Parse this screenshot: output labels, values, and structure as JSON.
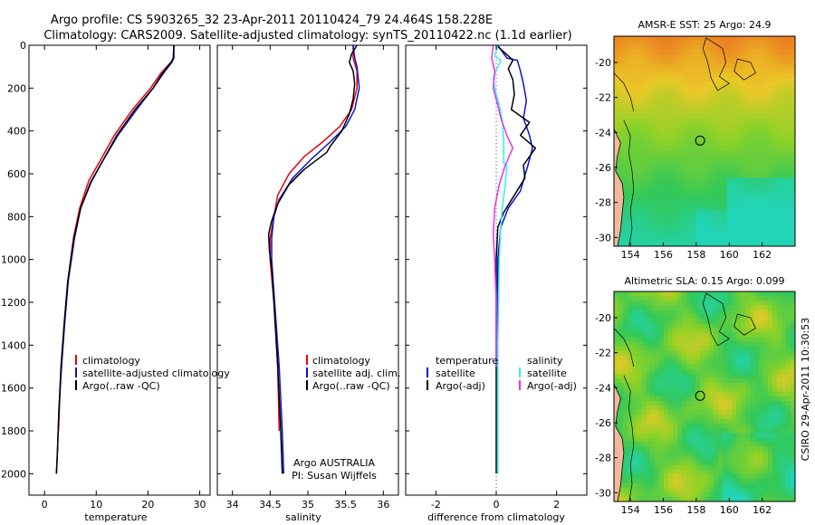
{
  "figure": {
    "title_line1": "Argo profile: CS 5903265_32 23-Apr-2011 20110424_79 24.464S 158.228E",
    "title_line2": "Climatology: CARS2009. Satellite-adjusted climatology: synTS_20110422.nc (1.1d earlier)",
    "side_label": "CSIRO 29-Apr-2011 10:30:53",
    "colors": {
      "red": "#e8000a",
      "blue": "#0a14d2",
      "black": "#000000",
      "cyan": "#33eeee",
      "magenta": "#e633e6"
    }
  },
  "chart_data": [
    {
      "type": "line",
      "xlabel": "temperature",
      "ylabel": "",
      "xlim": [
        -3,
        32
      ],
      "ylim": [
        2100,
        0
      ],
      "xticks": [
        0,
        10,
        20,
        30
      ],
      "yticks": [
        0,
        200,
        400,
        600,
        800,
        1000,
        1200,
        1400,
        1600,
        1800,
        2000
      ],
      "legend": [
        "climatology",
        "satellite-adjusted climatology",
        "Argo(..raw -QC)"
      ],
      "series": [
        {
          "color": "red",
          "points": [
            [
              25.0,
              0
            ],
            [
              24.9,
              60
            ],
            [
              24.4,
              80
            ],
            [
              22.5,
              130
            ],
            [
              20.5,
              200
            ],
            [
              17.0,
              300
            ],
            [
              13.5,
              420
            ],
            [
              10.5,
              550
            ],
            [
              8.6,
              630
            ],
            [
              6.8,
              760
            ],
            [
              5.6,
              900
            ],
            [
              4.5,
              1100
            ],
            [
              3.8,
              1300
            ],
            [
              3.2,
              1500
            ],
            [
              2.7,
              1800
            ]
          ]
        },
        {
          "color": "blue",
          "points": [
            [
              25.0,
              0
            ],
            [
              25.0,
              60
            ],
            [
              24.6,
              80
            ],
            [
              23.0,
              130
            ],
            [
              21.0,
              200
            ],
            [
              17.8,
              300
            ],
            [
              14.2,
              420
            ],
            [
              11.0,
              550
            ],
            [
              9.0,
              640
            ],
            [
              7.0,
              760
            ],
            [
              5.8,
              900
            ],
            [
              4.6,
              1100
            ],
            [
              3.9,
              1300
            ],
            [
              3.3,
              1500
            ],
            [
              2.8,
              1700
            ],
            [
              2.5,
              1900
            ],
            [
              2.3,
              2000
            ]
          ]
        },
        {
          "color": "black",
          "points": [
            [
              25.0,
              0
            ],
            [
              24.9,
              60
            ],
            [
              24.5,
              80
            ],
            [
              22.8,
              130
            ],
            [
              21.0,
              200
            ],
            [
              17.5,
              300
            ],
            [
              14.0,
              420
            ],
            [
              11.0,
              550
            ],
            [
              8.9,
              640
            ],
            [
              7.0,
              760
            ],
            [
              5.7,
              900
            ],
            [
              4.5,
              1100
            ],
            [
              3.8,
              1300
            ],
            [
              3.2,
              1500
            ],
            [
              2.8,
              1700
            ],
            [
              2.5,
              1900
            ],
            [
              2.3,
              2000
            ]
          ]
        }
      ]
    },
    {
      "type": "line",
      "xlabel": "salinity",
      "ylabel": "",
      "xlim": [
        33.8,
        36.2
      ],
      "ylim": [
        2100,
        0
      ],
      "xticks": [
        34,
        34.5,
        35,
        35.5,
        36
      ],
      "yticks": [],
      "legend": [
        "climatology",
        "satellite adj. clim.",
        "Argo(..raw -QC)"
      ],
      "notes": [
        "Argo AUSTRALIA",
        "PI: Susan Wijffels"
      ],
      "series": [
        {
          "color": "red",
          "points": [
            [
              35.6,
              0
            ],
            [
              35.6,
              60
            ],
            [
              35.65,
              120
            ],
            [
              35.65,
              200
            ],
            [
              35.58,
              300
            ],
            [
              35.42,
              380
            ],
            [
              35.2,
              450
            ],
            [
              34.95,
              520
            ],
            [
              34.75,
              600
            ],
            [
              34.6,
              700
            ],
            [
              34.55,
              800
            ],
            [
              34.5,
              900
            ],
            [
              34.5,
              1000
            ],
            [
              34.55,
              1200
            ],
            [
              34.6,
              1500
            ],
            [
              34.62,
              1800
            ]
          ]
        },
        {
          "color": "blue",
          "points": [
            [
              35.6,
              0
            ],
            [
              35.62,
              60
            ],
            [
              35.65,
              100
            ],
            [
              35.68,
              200
            ],
            [
              35.62,
              300
            ],
            [
              35.5,
              380
            ],
            [
              35.3,
              450
            ],
            [
              35.05,
              530
            ],
            [
              34.8,
              620
            ],
            [
              34.62,
              720
            ],
            [
              34.55,
              800
            ],
            [
              34.52,
              900
            ],
            [
              34.52,
              1000
            ],
            [
              34.56,
              1200
            ],
            [
              34.62,
              1500
            ],
            [
              34.66,
              1800
            ],
            [
              34.68,
              2000
            ]
          ]
        },
        {
          "color": "black",
          "points": [
            [
              35.65,
              0
            ],
            [
              35.58,
              40
            ],
            [
              35.55,
              80
            ],
            [
              35.6,
              120
            ],
            [
              35.62,
              180
            ],
            [
              35.6,
              250
            ],
            [
              35.55,
              320
            ],
            [
              35.45,
              400
            ],
            [
              35.3,
              470
            ],
            [
              35.25,
              500
            ],
            [
              35.1,
              540
            ],
            [
              34.95,
              580
            ],
            [
              34.75,
              650
            ],
            [
              34.6,
              740
            ],
            [
              34.52,
              820
            ],
            [
              34.48,
              880
            ],
            [
              34.49,
              960
            ],
            [
              34.52,
              1040
            ],
            [
              34.55,
              1200
            ],
            [
              34.6,
              1500
            ],
            [
              34.64,
              1800
            ],
            [
              34.66,
              2000
            ]
          ]
        }
      ]
    },
    {
      "type": "line",
      "xlabel": "difference from climatology",
      "ylabel": "",
      "xlim": [
        -3,
        3
      ],
      "ylim": [
        2100,
        0
      ],
      "xticks": [
        -2,
        0,
        2
      ],
      "yticks": [],
      "legend_left_title": "temperature",
      "legend_right_title": "salinity",
      "legend_left": [
        "satellite",
        "Argo(-adj)"
      ],
      "legend_right": [
        "satellite",
        "Argo(-adj)"
      ],
      "series": [
        {
          "color": "blue",
          "points": [
            [
              0.05,
              0
            ],
            [
              0.35,
              60
            ],
            [
              0.7,
              70
            ],
            [
              0.8,
              120
            ],
            [
              0.9,
              180
            ],
            [
              1.0,
              260
            ],
            [
              0.9,
              340
            ],
            [
              1.1,
              420
            ],
            [
              1.2,
              480
            ],
            [
              1.05,
              560
            ],
            [
              0.8,
              680
            ],
            [
              0.4,
              760
            ],
            [
              0.15,
              850
            ],
            [
              0.05,
              1000
            ],
            [
              0.05,
              1400
            ],
            [
              0.05,
              2000
            ]
          ]
        },
        {
          "color": "black",
          "points": [
            [
              0.0,
              0
            ],
            [
              0.4,
              50
            ],
            [
              0.55,
              70
            ],
            [
              0.4,
              110
            ],
            [
              0.55,
              160
            ],
            [
              0.6,
              230
            ],
            [
              0.5,
              300
            ],
            [
              1.1,
              360
            ],
            [
              0.8,
              420
            ],
            [
              1.3,
              480
            ],
            [
              0.9,
              560
            ],
            [
              0.95,
              620
            ],
            [
              0.6,
              700
            ],
            [
              0.25,
              780
            ],
            [
              0.05,
              850
            ],
            [
              0.0,
              1000
            ],
            [
              0.0,
              1400
            ],
            [
              0.0,
              2000
            ]
          ]
        },
        {
          "color": "cyan",
          "points": [
            [
              0.05,
              0
            ],
            [
              -0.05,
              50
            ],
            [
              0.15,
              70
            ],
            [
              -0.1,
              150
            ],
            [
              -0.05,
              200
            ],
            [
              0.1,
              280
            ],
            [
              0.2,
              350
            ],
            [
              0.25,
              450
            ],
            [
              0.25,
              550
            ],
            [
              0.35,
              560
            ],
            [
              0.3,
              650
            ],
            [
              0.2,
              760
            ],
            [
              0.15,
              850
            ],
            [
              0.1,
              1000
            ],
            [
              0.05,
              1400
            ],
            [
              0.05,
              2000
            ]
          ]
        },
        {
          "color": "magenta",
          "points": [
            [
              -0.1,
              0
            ],
            [
              -0.15,
              60
            ],
            [
              -0.05,
              120
            ],
            [
              -0.1,
              200
            ],
            [
              0.05,
              280
            ],
            [
              0.15,
              340
            ],
            [
              0.35,
              420
            ],
            [
              0.55,
              480
            ],
            [
              0.3,
              560
            ],
            [
              0.1,
              650
            ],
            [
              -0.05,
              760
            ],
            [
              -0.1,
              880
            ],
            [
              -0.05,
              1000
            ],
            [
              0.0,
              1200
            ],
            [
              0.0,
              1500
            ]
          ]
        }
      ]
    },
    {
      "type": "heatmap",
      "title": "AMSR-E SST: 25 Argo: 24.9",
      "xlim": [
        153,
        164
      ],
      "ylim": [
        -30.5,
        -18.5
      ],
      "xticks": [
        154,
        156,
        158,
        160,
        162
      ],
      "yticks": [
        -20,
        -22,
        -24,
        -26,
        -28,
        -30
      ],
      "marker": [
        158.228,
        -24.464
      ]
    },
    {
      "type": "heatmap",
      "title": "Altimetric SLA: 0.15 Argo: 0.099",
      "xlim": [
        153,
        164
      ],
      "ylim": [
        -30.5,
        -18.5
      ],
      "xticks": [
        154,
        156,
        158,
        160,
        162
      ],
      "yticks": [
        -20,
        -22,
        -24,
        -26,
        -28,
        -30
      ],
      "marker": [
        158.228,
        -24.464
      ]
    }
  ]
}
